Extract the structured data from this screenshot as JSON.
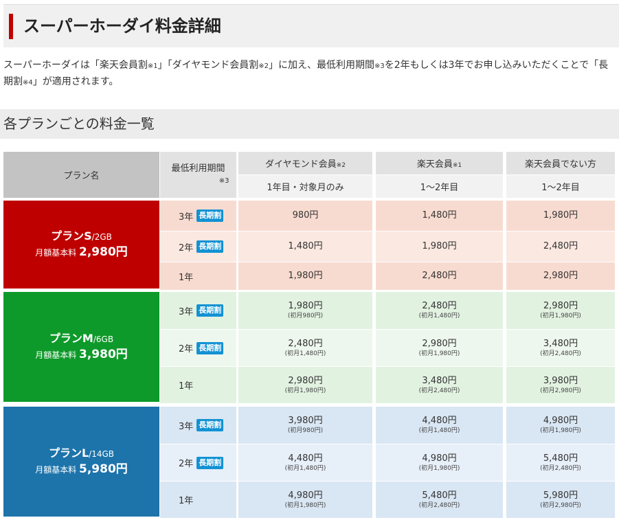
{
  "page": {
    "title": "スーパーホーダイ料金詳細",
    "intro_parts": [
      "スーパーホーダイは「楽天会員割",
      "※1",
      "」「ダイヤモンド会員割",
      "※2",
      "」に加え、最低利用期間",
      "※3",
      "を2年もしくは3年でお申し込みいただくことで「長期割",
      "※4",
      "」が適用されます。"
    ],
    "section_title": "各プランごとの料金一覧"
  },
  "table": {
    "headers": {
      "plan": "プラン名",
      "period": "最低利用期間",
      "period_note": "※3",
      "diamond": "ダイヤモンド会員",
      "diamond_note": "※2",
      "diamond_sub": "1年目・対象月のみ",
      "rakuten": "楽天会員",
      "rakuten_note": "※1",
      "rakuten_sub": "1～2年目",
      "non": "楽天会員でない方",
      "non_sub": "1～2年目"
    },
    "badge": "長期割",
    "plans": [
      {
        "name": "プランS",
        "gb": "/2GB",
        "base_label": "月額基本料",
        "base_price": "2,980円",
        "color": "#bf0000",
        "rows": [
          {
            "period": "3年",
            "badge": true,
            "prices": [
              "980円",
              "1,480円",
              "1,980円"
            ],
            "subs": [
              "",
              "",
              ""
            ]
          },
          {
            "period": "2年",
            "badge": true,
            "prices": [
              "1,480円",
              "1,980円",
              "2,480円"
            ],
            "subs": [
              "",
              "",
              ""
            ]
          },
          {
            "period": "1年",
            "badge": false,
            "prices": [
              "1,980円",
              "2,480円",
              "2,980円"
            ],
            "subs": [
              "",
              "",
              ""
            ]
          }
        ]
      },
      {
        "name": "プランM",
        "gb": "/6GB",
        "base_label": "月額基本料",
        "base_price": "3,980円",
        "color": "#0e9a2a",
        "rows": [
          {
            "period": "3年",
            "badge": true,
            "prices": [
              "1,980円",
              "2,480円",
              "2,980円"
            ],
            "subs": [
              "(初月980円)",
              "(初月1,480円)",
              "(初月1,980円)"
            ]
          },
          {
            "period": "2年",
            "badge": true,
            "prices": [
              "2,480円",
              "2,980円",
              "3,480円"
            ],
            "subs": [
              "(初月1,480円)",
              "(初月1,980円)",
              "(初月2,480円)"
            ]
          },
          {
            "period": "1年",
            "badge": false,
            "prices": [
              "2,980円",
              "3,480円",
              "3,980円"
            ],
            "subs": [
              "(初月1,980円)",
              "(初月2,480円)",
              "(初月2,980円)"
            ]
          }
        ]
      },
      {
        "name": "プランL",
        "gb": "/14GB",
        "base_label": "月額基本料",
        "base_price": "5,980円",
        "color": "#1d74ab",
        "rows": [
          {
            "period": "3年",
            "badge": true,
            "prices": [
              "3,980円",
              "4,480円",
              "4,980円"
            ],
            "subs": [
              "(初月980円)",
              "(初月1,480円)",
              "(初月1,980円)"
            ]
          },
          {
            "period": "2年",
            "badge": true,
            "prices": [
              "4,480円",
              "4,980円",
              "5,480円"
            ],
            "subs": [
              "(初月1,480円)",
              "(初月1,980円)",
              "(初月2,480円)"
            ]
          },
          {
            "period": "1年",
            "badge": false,
            "prices": [
              "4,980円",
              "5,480円",
              "5,980円"
            ],
            "subs": [
              "(初月1,980円)",
              "(初月2,480円)",
              "(初月2,980円)"
            ]
          }
        ]
      }
    ],
    "colors": {
      "s_row_a": "#f8dbd0",
      "s_row_b": "#fbe8e0",
      "m_row_a": "#e2f2e1",
      "m_row_b": "#eef7ed",
      "l_row_a": "#d9e6f3",
      "l_row_b": "#e7eff8"
    }
  }
}
